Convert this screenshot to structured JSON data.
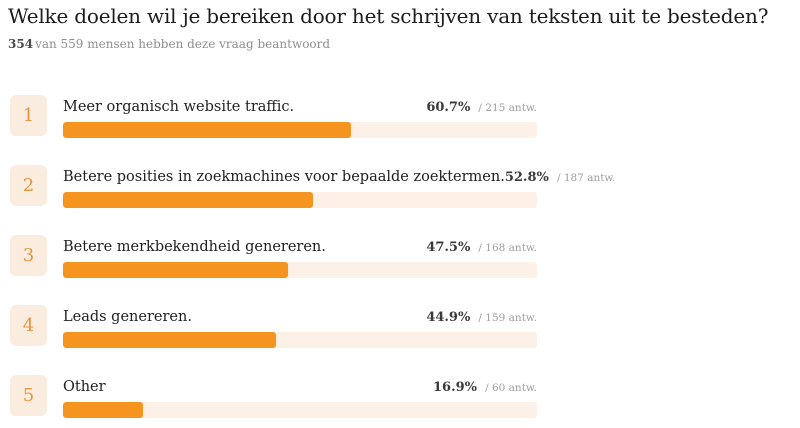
{
  "header": {
    "title": "Welke doelen wil je bereiken door het schrijven van teksten uit te besteden?",
    "answered_count": "354",
    "answered_suffix": "van 559 mensen hebben deze vraag beantwoord"
  },
  "rows": [
    {
      "rank": "1",
      "label": "Meer organisch website traffic.",
      "percent": "60.7%",
      "answers": "/ 215 antw.",
      "value": 60.7
    },
    {
      "rank": "2",
      "label": "Betere posities in zoekmachines voor bepaalde zoektermen.",
      "percent": "52.8%",
      "answers": "/ 187 antw.",
      "value": 52.8
    },
    {
      "rank": "3",
      "label": "Betere merkbekendheid genereren.",
      "percent": "47.5%",
      "answers": "/ 168 antw.",
      "value": 47.5
    },
    {
      "rank": "4",
      "label": "Leads genereren.",
      "percent": "44.9%",
      "answers": "/ 159 antw.",
      "value": 44.9
    },
    {
      "rank": "5",
      "label": "Other",
      "percent": "16.9%",
      "answers": "/ 60 antw.",
      "value": 16.9
    }
  ],
  "chart_data": {
    "type": "bar",
    "orientation": "horizontal",
    "title": "Welke doelen wil je bereiken door het schrijven van teksten uit te besteden?",
    "subtitle": "354 van 559 mensen hebben deze vraag beantwoord",
    "categories": [
      "Meer organisch website traffic.",
      "Betere posities in zoekmachines voor bepaalde zoektermen.",
      "Betere merkbekendheid genereren.",
      "Leads genereren.",
      "Other"
    ],
    "values": [
      60.7,
      52.8,
      47.5,
      44.9,
      16.9
    ],
    "counts": [
      215,
      187,
      168,
      159,
      60
    ],
    "value_unit": "%",
    "total_answered": 354,
    "total_asked": 559,
    "xlim": [
      0,
      100
    ],
    "grid": false,
    "legend": false
  },
  "colors": {
    "bar_fill": "#F5941F",
    "bar_track": "#FCF0E7",
    "badge_bg": "#FAEDE0",
    "badge_text": "#E79440"
  }
}
